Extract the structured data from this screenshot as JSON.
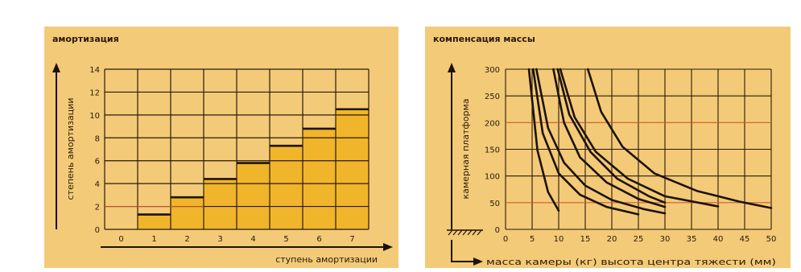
{
  "chart_data": [
    {
      "type": "bar",
      "title": "амортизация",
      "xlabel": "ступень амортизации",
      "ylabel": "степень амортизации",
      "categories": [
        "0",
        "1",
        "2",
        "3",
        "4",
        "5",
        "6",
        "7"
      ],
      "values": [
        0,
        1.3,
        2.8,
        4.4,
        5.8,
        7.3,
        8.8,
        10.5
      ],
      "xticks": [
        "0",
        "1",
        "2",
        "3",
        "4",
        "5",
        "6",
        "7"
      ],
      "yticks": [
        "0",
        "2",
        "4",
        "6",
        "8",
        "10",
        "12",
        "14"
      ],
      "ylim": [
        0,
        14
      ],
      "grid": true,
      "colors": {
        "panel": "#f3ca78",
        "bar": "#f0b52a",
        "grid": "#2a1a0a",
        "redline": "#d05a30"
      }
    },
    {
      "type": "line",
      "title": "компенсация массы",
      "xlabel": "масса камеры (кг) высота центра тяжести (мм)",
      "ylabel": "камерная платформа",
      "xticks": [
        "0",
        "5",
        "10",
        "15",
        "20",
        "25",
        "30",
        "35",
        "40",
        "45",
        "50"
      ],
      "yticks": [
        "0",
        "50",
        "100",
        "150",
        "200",
        "250",
        "300"
      ],
      "xlim": [
        0,
        50
      ],
      "ylim": [
        0,
        300
      ],
      "grid": true,
      "series": [
        {
          "x": [
            4.4,
            6,
            8,
            10
          ],
          "y": [
            300,
            148,
            70,
            35
          ]
        },
        {
          "x": [
            5.2,
            7,
            10,
            14,
            19,
            25
          ],
          "y": [
            300,
            180,
            105,
            65,
            42,
            28
          ]
        },
        {
          "x": [
            5.8,
            8,
            11,
            15,
            20,
            26,
            30
          ],
          "y": [
            300,
            190,
            125,
            82,
            55,
            38,
            30
          ]
        },
        {
          "x": [
            9,
            11,
            14,
            19,
            25,
            30
          ],
          "y": [
            300,
            200,
            135,
            88,
            57,
            42
          ]
        },
        {
          "x": [
            9.8,
            12,
            16,
            21,
            27,
            30
          ],
          "y": [
            300,
            215,
            145,
            95,
            62,
            50
          ]
        },
        {
          "x": [
            10.3,
            13,
            17,
            23,
            30,
            40
          ],
          "y": [
            300,
            210,
            145,
            95,
            62,
            43
          ]
        },
        {
          "x": [
            15.5,
            18,
            22,
            28,
            36,
            44,
            50
          ],
          "y": [
            300,
            220,
            155,
            105,
            72,
            52,
            40
          ]
        }
      ],
      "colors": {
        "panel": "#f3ca78",
        "line": "#1c1208",
        "grid": "#2a1a0a",
        "redline": "#d05a30"
      }
    }
  ]
}
